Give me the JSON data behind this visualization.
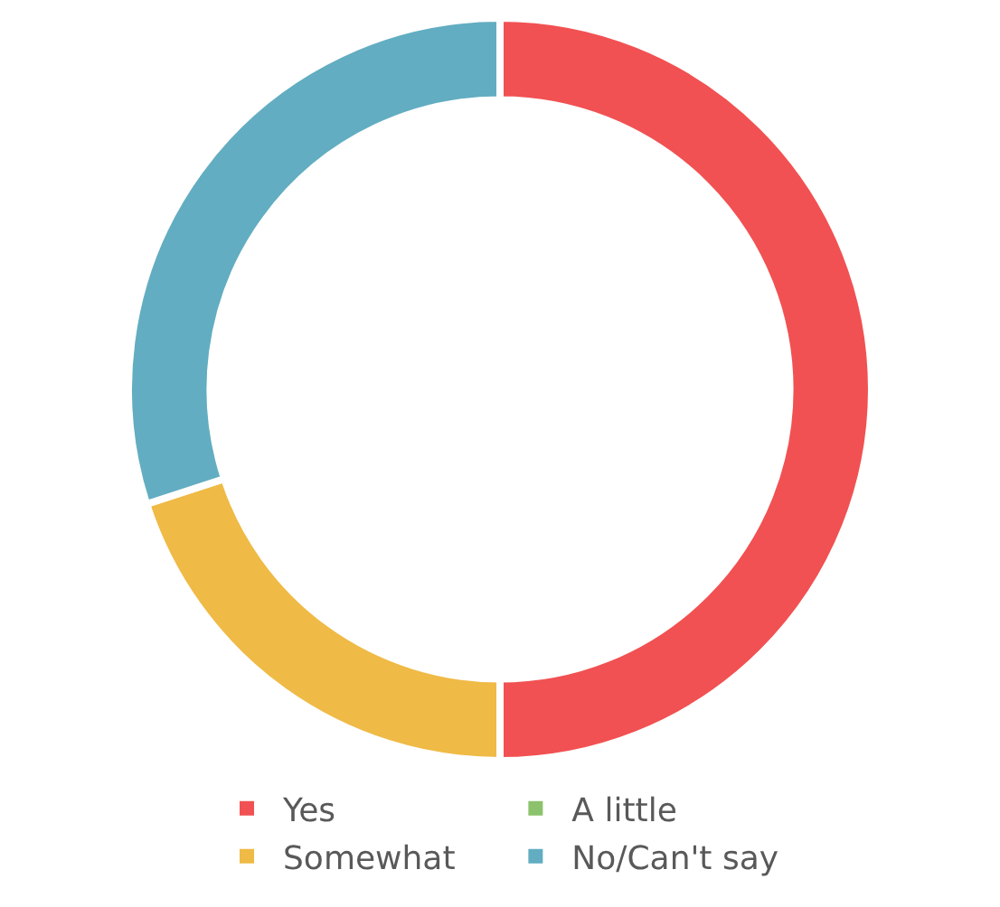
{
  "chart_data": {
    "type": "donut",
    "categories": [
      "Yes",
      "A little",
      "Somewhat",
      "No/Can't say"
    ],
    "values": [
      50,
      0,
      20,
      30
    ],
    "colors": [
      "#f15152",
      "#8cc26b",
      "#efba45",
      "#62adc1"
    ],
    "legend": "bottom"
  }
}
